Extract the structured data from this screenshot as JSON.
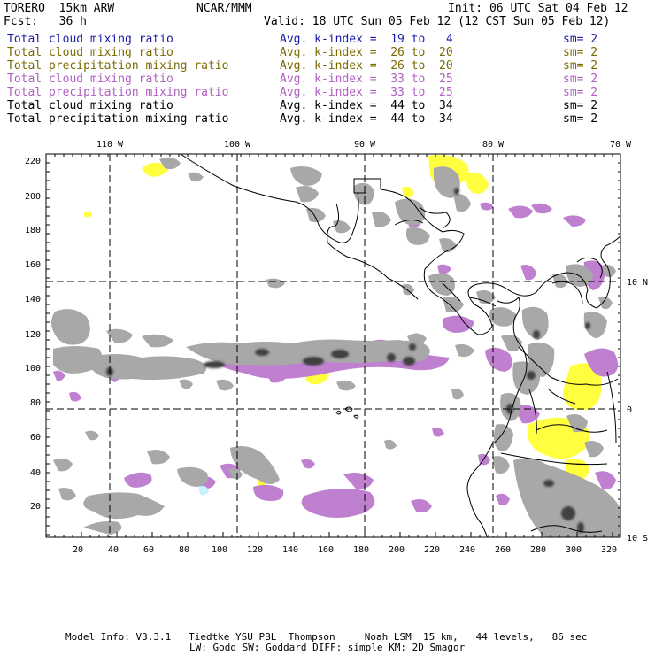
{
  "header": {
    "model": "TORERO  15km ARW",
    "org": "NCAR/MMM",
    "init": "Init: 06 UTC Sat 04 Feb 12",
    "fcst": "Fcst:   36 h",
    "valid": "Valid: 18 UTC Sun 05 Feb 12 (12 CST Sun 05 Feb 12)"
  },
  "legend": [
    {
      "field": "Total cloud mixing ratio",
      "kindex": "Avg. k-index =  19 to   4",
      "sm": "sm= 2",
      "color": "#1a1aa8"
    },
    {
      "field": "Total cloud mixing ratio",
      "kindex": "Avg. k-index =  26 to  20",
      "sm": "sm= 2",
      "color": "#7a6a00"
    },
    {
      "field": "Total precipitation mixing ratio",
      "kindex": "Avg. k-index =  26 to  20",
      "sm": "sm= 2",
      "color": "#7a6a00"
    },
    {
      "field": "Total cloud mixing ratio",
      "kindex": "Avg. k-index =  33 to  25",
      "sm": "sm= 2",
      "color": "#b060c0"
    },
    {
      "field": "Total precipitation mixing ratio",
      "kindex": "Avg. k-index =  33 to  25",
      "sm": "sm= 2",
      "color": "#b060c0"
    },
    {
      "field": "Total cloud mixing ratio",
      "kindex": "Avg. k-index =  44 to  34",
      "sm": "sm= 2",
      "color": "#000000"
    },
    {
      "field": "Total precipitation mixing ratio",
      "kindex": "Avg. k-index =  44 to  34",
      "sm": "sm= 2",
      "color": "#000000"
    }
  ],
  "axes": {
    "lon_labels": [
      "110 W",
      "100 W",
      "90 W",
      "80 W",
      "70 W"
    ],
    "lat_labels": [
      "10 N",
      "0",
      "10 S"
    ],
    "x_ticks": [
      "20",
      "40",
      "60",
      "80",
      "100",
      "120",
      "140",
      "160",
      "180",
      "200",
      "220",
      "240",
      "260",
      "280",
      "300",
      "320"
    ],
    "y_ticks": [
      "220",
      "200",
      "180",
      "160",
      "140",
      "120",
      "100",
      "80",
      "60",
      "40",
      "20"
    ]
  },
  "colors": {
    "yellow": "#ffff40",
    "purple": "#c080d0",
    "gray": "#a8a8a8",
    "dark": "#404040",
    "coast": "#000000"
  },
  "footer": {
    "line1": "Model Info: V3.3.1   Tiedtke YSU PBL  Thompson     Noah LSM  15 km,   44 levels,   86 sec",
    "line2": "LW: Godd SW: Goddard DIFF: simple KM: 2D Smagor"
  }
}
